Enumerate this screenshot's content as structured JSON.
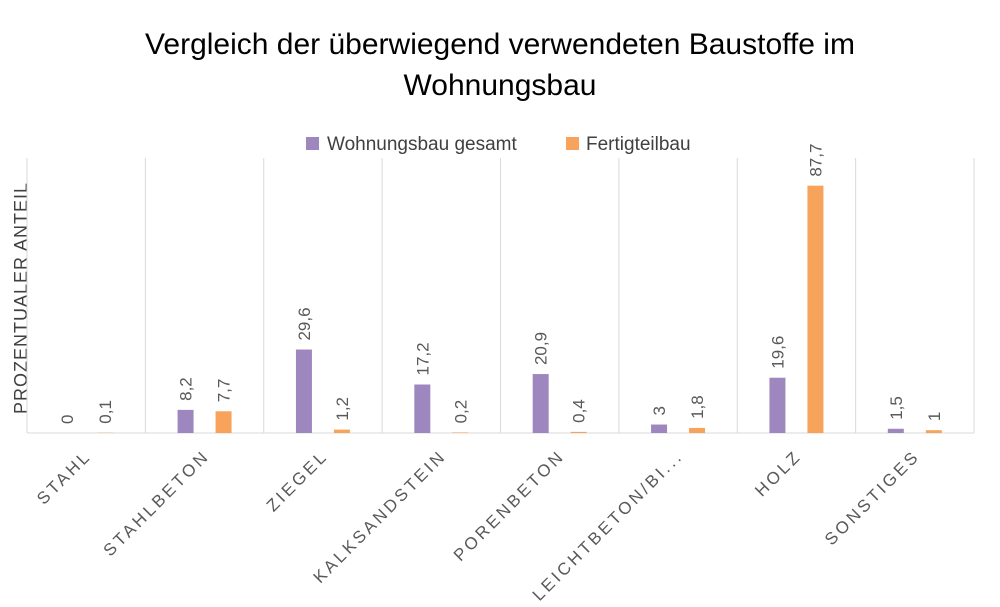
{
  "chart_data": {
    "type": "bar",
    "title_lines": [
      "Vergleich der überwiegend verwendeten Baustoffe im",
      "Wohnungsbau"
    ],
    "ylabel": "PROZENTUALER ANTEIL",
    "xlabel": "",
    "ylim": [
      0,
      90
    ],
    "grid": "vertical category separators",
    "legend_position": "top-center",
    "categories": [
      "STAHL",
      "STAHLBETON",
      "ZIEGEL",
      "KALKSANDSTEIN",
      "PORENBETON",
      "LEICHTBETON/BI...",
      "HOLZ",
      "SONSTIGES"
    ],
    "series": [
      {
        "name": "Wohnungsbau gesamt",
        "color": "#9E86BE",
        "values": [
          0,
          8.2,
          29.6,
          17.2,
          20.9,
          3,
          19.6,
          1.5
        ],
        "labels": [
          "0",
          "8,2",
          "29,6",
          "17,2",
          "20,9",
          "3",
          "19,6",
          "1,5"
        ]
      },
      {
        "name": "Fertigteilbau",
        "color": "#F7A35C",
        "values": [
          0.1,
          7.7,
          1.2,
          0.2,
          0.4,
          1.8,
          87.7,
          1
        ],
        "labels": [
          "0,1",
          "7,7",
          "1,2",
          "0,2",
          "0,4",
          "1,8",
          "87,7",
          "1"
        ]
      }
    ]
  }
}
